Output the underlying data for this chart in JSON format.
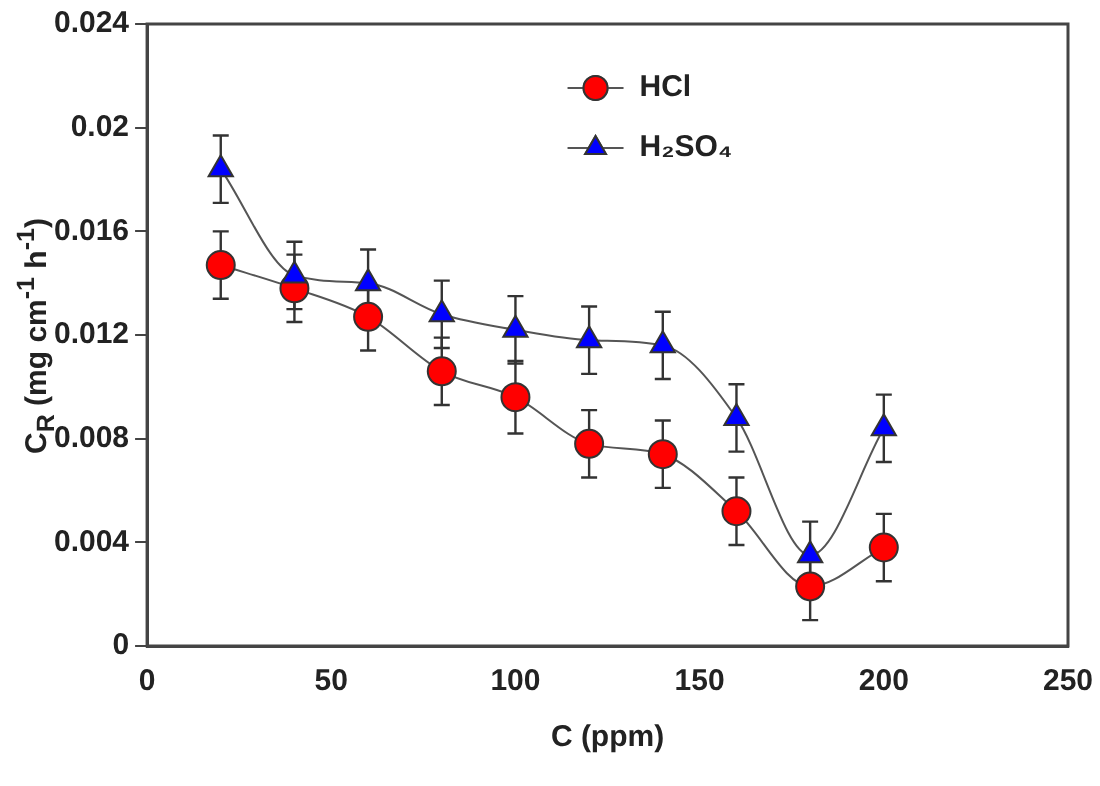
{
  "chart_data": {
    "type": "line",
    "xlabel": "C (ppm)",
    "ylabel": "C$_{R}$ (mg cm$^{-1}$ h$^{-1}$)",
    "x": [
      20,
      40,
      60,
      80,
      100,
      120,
      140,
      160,
      180,
      200
    ],
    "series": [
      {
        "name": "HCl",
        "color": "#ff0000",
        "marker": "circle",
        "values": [
          0.0147,
          0.0138,
          0.0127,
          0.0106,
          0.0096,
          0.0078,
          0.0074,
          0.0052,
          0.0023,
          0.0038
        ],
        "errors": [
          0.0013,
          0.0013,
          0.0013,
          0.0013,
          0.0014,
          0.0013,
          0.0013,
          0.0013,
          0.0013,
          0.0013
        ]
      },
      {
        "name": "H₂SO₄",
        "color": "#0000ff",
        "marker": "triangle",
        "values": [
          0.0184,
          0.0143,
          0.014,
          0.0128,
          0.0122,
          0.0118,
          0.0116,
          0.0088,
          0.0035,
          0.0084
        ],
        "errors": [
          0.0013,
          0.0013,
          0.0013,
          0.0013,
          0.0013,
          0.0013,
          0.0013,
          0.0013,
          0.0013,
          0.0013
        ]
      }
    ],
    "xlim": [
      0,
      250
    ],
    "xticks": [
      0,
      50,
      100,
      150,
      200,
      250
    ],
    "ylim": [
      0,
      0.024
    ],
    "yticks": [
      0,
      0.004,
      0.008,
      0.012,
      0.016,
      0.02,
      0.024
    ],
    "grid": false,
    "legend": "top",
    "line_style": "solid"
  }
}
